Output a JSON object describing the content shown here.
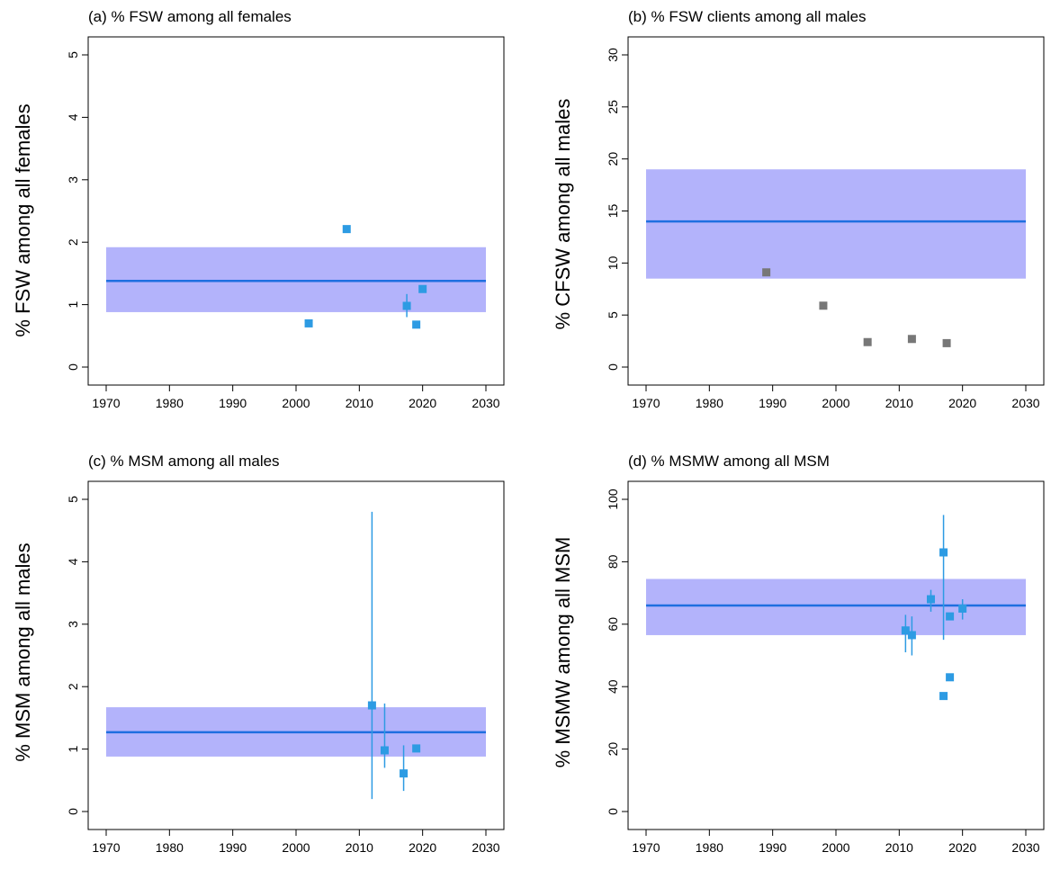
{
  "colors": {
    "band": "#b3b3fb",
    "line": "#1f6fe0",
    "point_blue": "#2d9be3",
    "point_grey": "#777777",
    "axis": "#000000"
  },
  "chart_data": [
    {
      "type": "scatter",
      "title": "(a) % FSW among all females",
      "xlabel": "",
      "ylabel": "% FSW among all females",
      "xlim": [
        1970,
        2030
      ],
      "ylim": [
        0,
        5
      ],
      "x_ticks": [
        "1970",
        "1980",
        "1990",
        "2000",
        "2010",
        "2020",
        "2030"
      ],
      "y_ticks": [
        "0",
        "1",
        "2",
        "3",
        "4",
        "5"
      ],
      "band": {
        "x_range": [
          1970,
          2030
        ],
        "lower": 0.88,
        "upper": 1.92,
        "mid": 1.38
      },
      "points": [
        {
          "x": 2002,
          "y": 0.7,
          "color": "blue"
        },
        {
          "x": 2008,
          "y": 2.21,
          "color": "blue"
        },
        {
          "x": 2017.5,
          "y": 0.98,
          "lo": 0.8,
          "hi": 1.17,
          "color": "blue"
        },
        {
          "x": 2019,
          "y": 0.68,
          "color": "blue"
        },
        {
          "x": 2020,
          "y": 1.25,
          "color": "blue"
        }
      ]
    },
    {
      "type": "scatter",
      "title": "(b) % FSW clients among all males",
      "xlabel": "",
      "ylabel": "% CFSW among all males",
      "xlim": [
        1970,
        2030
      ],
      "ylim": [
        0,
        30
      ],
      "x_ticks": [
        "1970",
        "1980",
        "1990",
        "2000",
        "2010",
        "2020",
        "2030"
      ],
      "y_ticks": [
        "0",
        "5",
        "10",
        "15",
        "20",
        "25",
        "30"
      ],
      "band": {
        "x_range": [
          1970,
          2030
        ],
        "lower": 8.5,
        "upper": 19.0,
        "mid": 14.0
      },
      "points": [
        {
          "x": 1989,
          "y": 9.1,
          "color": "grey"
        },
        {
          "x": 1998,
          "y": 5.9,
          "color": "grey"
        },
        {
          "x": 2005,
          "y": 2.4,
          "color": "grey"
        },
        {
          "x": 2012,
          "y": 2.7,
          "color": "grey"
        },
        {
          "x": 2017.5,
          "y": 2.3,
          "color": "grey"
        }
      ]
    },
    {
      "type": "scatter",
      "title": "(c) % MSM among all males",
      "xlabel": "",
      "ylabel": "% MSM among all males",
      "xlim": [
        1970,
        2030
      ],
      "ylim": [
        0,
        5
      ],
      "x_ticks": [
        "1970",
        "1980",
        "1990",
        "2000",
        "2010",
        "2020",
        "2030"
      ],
      "y_ticks": [
        "0",
        "1",
        "2",
        "3",
        "4",
        "5"
      ],
      "band": {
        "x_range": [
          1970,
          2030
        ],
        "lower": 0.88,
        "upper": 1.67,
        "mid": 1.27
      },
      "points": [
        {
          "x": 2012,
          "y": 1.7,
          "lo": 0.2,
          "hi": 4.8,
          "color": "blue"
        },
        {
          "x": 2014,
          "y": 0.98,
          "lo": 0.7,
          "hi": 1.73,
          "color": "blue"
        },
        {
          "x": 2017,
          "y": 0.61,
          "lo": 0.33,
          "hi": 1.06,
          "color": "blue"
        },
        {
          "x": 2019,
          "y": 1.01,
          "color": "blue"
        }
      ]
    },
    {
      "type": "scatter",
      "title": "(d) % MSMW among all MSM",
      "xlabel": "",
      "ylabel": "% MSMW among all MSM",
      "xlim": [
        1970,
        2030
      ],
      "ylim": [
        0,
        100
      ],
      "x_ticks": [
        "1970",
        "1980",
        "1990",
        "2000",
        "2010",
        "2020",
        "2030"
      ],
      "y_ticks": [
        "0",
        "20",
        "40",
        "60",
        "80",
        "100"
      ],
      "band": {
        "x_range": [
          1970,
          2030
        ],
        "lower": 56.5,
        "upper": 74.5,
        "mid": 66.0
      },
      "points": [
        {
          "x": 2011,
          "y": 58,
          "lo": 51,
          "hi": 63,
          "color": "blue"
        },
        {
          "x": 2012,
          "y": 56.5,
          "lo": 50,
          "hi": 62.5,
          "color": "blue"
        },
        {
          "x": 2015,
          "y": 68,
          "lo": 64,
          "hi": 71,
          "color": "blue"
        },
        {
          "x": 2017,
          "y": 83,
          "lo": 55,
          "hi": 95,
          "color": "blue"
        },
        {
          "x": 2017,
          "y": 37,
          "color": "blue"
        },
        {
          "x": 2018,
          "y": 62.5,
          "color": "blue"
        },
        {
          "x": 2018,
          "y": 43,
          "color": "blue"
        },
        {
          "x": 2020,
          "y": 65,
          "lo": 61.5,
          "hi": 68,
          "color": "blue"
        }
      ]
    }
  ]
}
